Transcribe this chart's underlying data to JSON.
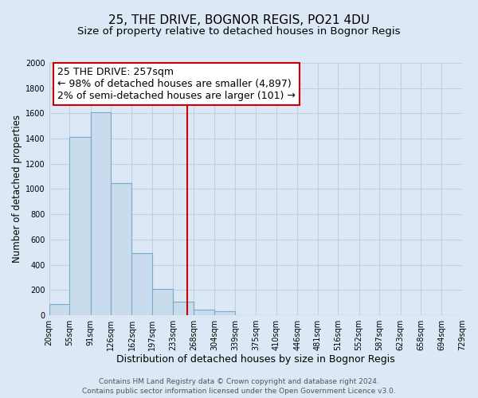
{
  "title": "25, THE DRIVE, BOGNOR REGIS, PO21 4DU",
  "subtitle": "Size of property relative to detached houses in Bognor Regis",
  "xlabel": "Distribution of detached houses by size in Bognor Regis",
  "ylabel": "Number of detached properties",
  "footer_line1": "Contains HM Land Registry data © Crown copyright and database right 2024.",
  "footer_line2": "Contains public sector information licensed under the Open Government Licence v3.0.",
  "bin_edges": [
    20,
    55,
    91,
    126,
    162,
    197,
    233,
    268,
    304,
    339,
    375,
    410,
    446,
    481,
    516,
    552,
    587,
    623,
    658,
    694,
    729
  ],
  "bin_labels": [
    "20sqm",
    "55sqm",
    "91sqm",
    "126sqm",
    "162sqm",
    "197sqm",
    "233sqm",
    "268sqm",
    "304sqm",
    "339sqm",
    "375sqm",
    "410sqm",
    "446sqm",
    "481sqm",
    "516sqm",
    "552sqm",
    "587sqm",
    "623sqm",
    "658sqm",
    "694sqm",
    "729sqm"
  ],
  "counts": [
    90,
    1415,
    1610,
    1050,
    490,
    205,
    110,
    45,
    30,
    0,
    0,
    0,
    0,
    0,
    0,
    0,
    0,
    0,
    0,
    0
  ],
  "bar_color": "#c8dcee",
  "bar_edgecolor": "#7aaac8",
  "property_size": 257,
  "vline_color": "#cc0000",
  "annotation_line1": "25 THE DRIVE: 257sqm",
  "annotation_line2": "← 98% of detached houses are smaller (4,897)",
  "annotation_line3": "2% of semi-detached houses are larger (101) →",
  "annotation_box_edgecolor": "#cc0000",
  "annotation_box_facecolor": "#ffffff",
  "ylim": [
    0,
    2000
  ],
  "yticks": [
    0,
    200,
    400,
    600,
    800,
    1000,
    1200,
    1400,
    1600,
    1800,
    2000
  ],
  "figure_bg": "#dce8f5",
  "plot_bg": "#dce8f5",
  "grid_color": "#c0d0e0",
  "title_fontsize": 11,
  "subtitle_fontsize": 9.5,
  "xlabel_fontsize": 9,
  "ylabel_fontsize": 8.5,
  "tick_fontsize": 7,
  "annotation_fontsize": 9,
  "footer_fontsize": 6.5
}
